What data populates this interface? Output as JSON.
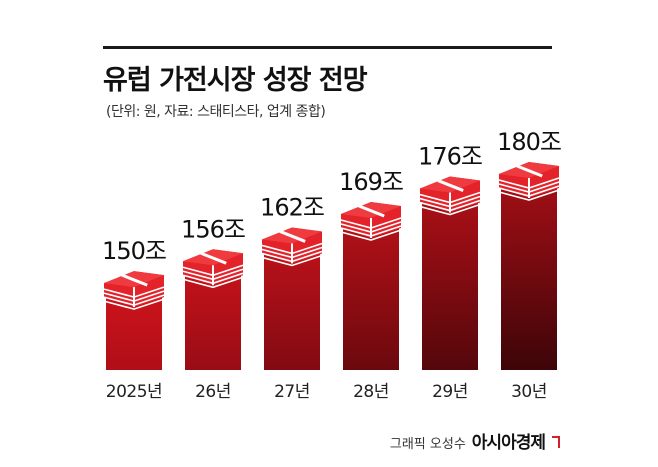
{
  "header": {
    "title": "유럽 가전시장 성장 전망",
    "subtitle": "(단위: 원, 자료: 스태티스타, 업계 종합)"
  },
  "credit": {
    "author": "그래픽 오성수",
    "brand": "아시아경제"
  },
  "colors": {
    "bar_top": "#d0141c",
    "bar_bottom_light": "#b00e18",
    "bar_dark": "#3d0508",
    "bundle_red": "#e3222a",
    "bundle_stripe": "#ffffff"
  },
  "chart_data": {
    "type": "bar",
    "title": "유럽 가전시장 성장 전망",
    "categories": [
      "2025년",
      "26년",
      "27년",
      "28년",
      "29년",
      "30년"
    ],
    "values": [
      150,
      156,
      162,
      169,
      176,
      180
    ],
    "value_labels": [
      "150조",
      "156조",
      "162조",
      "169조",
      "176조",
      "180조"
    ],
    "unit": "조",
    "grid": false,
    "legend": "none"
  }
}
